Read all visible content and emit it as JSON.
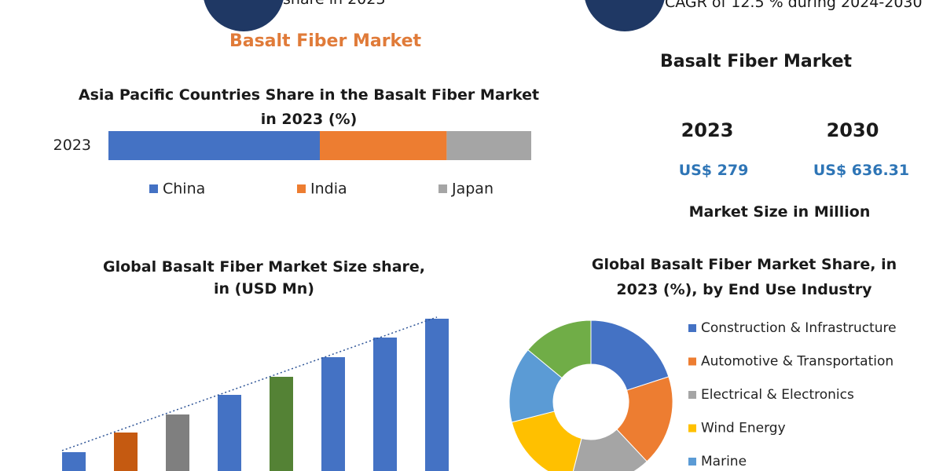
{
  "header": {
    "left_note": "share in 2023",
    "right_note": "CAGR of 12.5 % during 2024-2030",
    "title": "Basalt Fiber Market"
  },
  "market_size": {
    "title": "Basalt Fiber Market",
    "years": [
      "2023",
      "2030"
    ],
    "values": [
      "US$ 279",
      "US$ 636.31"
    ],
    "caption": "Market Size in Million"
  },
  "chart_data": [
    {
      "type": "stacked_bar_h",
      "title": "Asia Pacific Countries Share in the  Basalt Fiber Market in 2023 (%)",
      "categories": [
        "2023"
      ],
      "series": [
        {
          "name": "China",
          "color": "#4472c4",
          "values": [
            50
          ]
        },
        {
          "name": "India",
          "color": "#ed7d31",
          "values": [
            30
          ]
        },
        {
          "name": "Japan",
          "color": "#a5a5a5",
          "values": [
            20
          ]
        }
      ],
      "xlim": [
        0,
        100
      ],
      "legend": "bottom"
    },
    {
      "type": "bar",
      "title": "Global Basalt Fiber Market Size share, in (USD Mn)",
      "categories": [
        null,
        null,
        null,
        null,
        null,
        null,
        null,
        null
      ],
      "values": [
        24,
        49,
        72,
        97,
        120,
        145,
        170,
        194
      ],
      "colors": [
        "#4472c4",
        "#c55a11",
        "#7f7f7f",
        "#4472c4",
        "#548235",
        "#4472c4",
        "#4472c4",
        "#4472c4"
      ],
      "ylim": [
        0,
        200
      ],
      "trendline": true
    },
    {
      "type": "donut",
      "title": "Global Basalt Fiber Market  Share, in 2023 (%), by End Use Industry",
      "categories": [
        "Construction & Infrastructure",
        "Automotive & Transportation",
        "Electrical & Electronics",
        "Wind Energy",
        "Marine",
        null
      ],
      "values": [
        20,
        18,
        16,
        17,
        15,
        14
      ],
      "colors": [
        "#4472c4",
        "#ed7d31",
        "#a5a5a5",
        "#ffc000",
        "#5b9bd5",
        "#70ad47"
      ],
      "legend": "right"
    }
  ]
}
